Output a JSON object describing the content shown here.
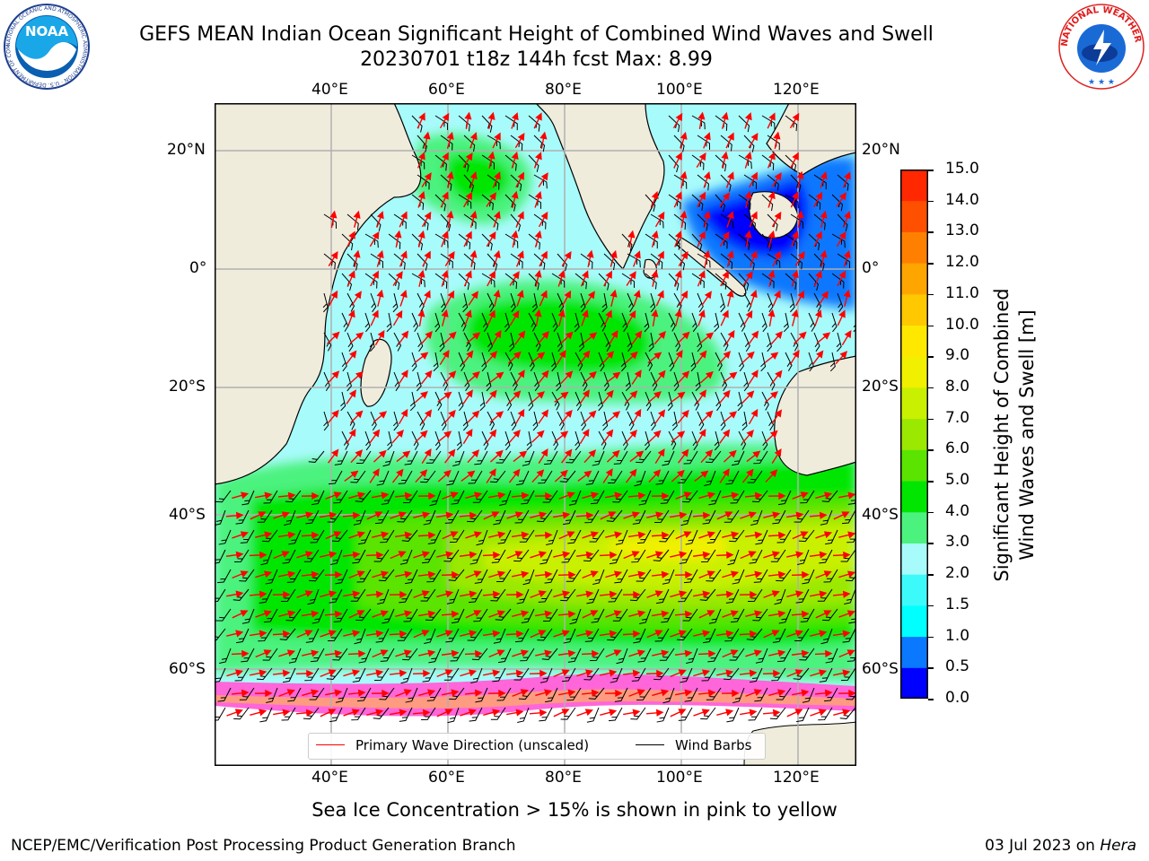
{
  "title": {
    "line1": "GEFS MEAN Indian Ocean Significant Height of Combined Wind Waves and Swell",
    "line2": "20230701 t18z 144h fcst   Max: 8.99"
  },
  "logos": {
    "left": "NOAA",
    "left_ring": "NATIONAL OCEANIC AND ATMOSPHERIC ADMINISTRATION · U.S. DEPARTMENT OF COMMERCE",
    "right_ring": "NATIONAL WEATHER SERVICE"
  },
  "map": {
    "lon_ticks": [
      "40°E",
      "60°E",
      "80°E",
      "100°E",
      "120°E"
    ],
    "lat_ticks_left": [
      "20°N",
      "0°",
      "20°S",
      "40°S",
      "60°S"
    ],
    "lat_ticks_right": [
      "20°N",
      "0°",
      "20°S",
      "40°S",
      "60°S"
    ],
    "gridlines": true,
    "colors": {
      "land": "#efecdc",
      "ice": "#ffffff",
      "wave_arrow": "#ff0000",
      "wind_barb": "#000000"
    }
  },
  "legend": {
    "wave": "Primary Wave Direction (unscaled)",
    "barbs": "Wind Barbs"
  },
  "colorbar": {
    "label_line1": "Significant Height of Combined",
    "label_line2": "Wind Waves and Swell [m]",
    "ticks": [
      "0.0",
      "0.5",
      "1.0",
      "1.5",
      "2.0",
      "3.0",
      "4.0",
      "5.0",
      "6.0",
      "7.0",
      "8.0",
      "9.0",
      "10.0",
      "11.0",
      "12.0",
      "13.0",
      "14.0",
      "15.0"
    ],
    "colors": [
      "#0000ff",
      "#0a78ff",
      "#00ffff",
      "#3dfafa",
      "#a8fbfb",
      "#4cf27e",
      "#00e600",
      "#5ae400",
      "#9be800",
      "#c8f000",
      "#f0f000",
      "#ffe800",
      "#ffc800",
      "#ffa500",
      "#ff8000",
      "#ff5000",
      "#ff2800"
    ]
  },
  "footnote": "Sea Ice Concentration > 15% is shown in pink to yellow",
  "credit_left": "NCEP/EMC/Verification Post Processing Product Generation Branch",
  "credit_right_prefix": "03 Jul 2023 on ",
  "credit_right_host": "Hera"
}
